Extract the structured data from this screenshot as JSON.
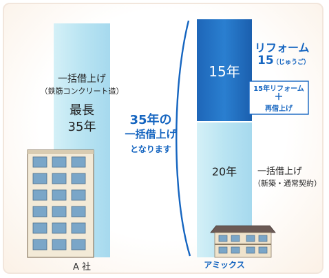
{
  "company_a": {
    "lines": [
      "一括借上げ",
      "（鉄筋コンクリート造）",
      "最長",
      "35年"
    ],
    "caption": "A 社"
  },
  "middle": {
    "lines": [
      "35年の",
      "一括借上げ",
      "となります"
    ],
    "color": "#1565c0"
  },
  "amix": {
    "top_block": "15年",
    "bottom_block": "20年",
    "caption": "アミックス",
    "reform_title": "リフォーム",
    "reform_15": "15",
    "reform_reading": "（じゅうご）",
    "box_line1": "15年リフォーム",
    "box_plus": "＋",
    "box_line2": "再借上げ",
    "bottom_text": "一括借上げ",
    "bottom_sub": "（新築・通常契約）"
  },
  "colors": {
    "light_bar": "#bfe6f3",
    "dark_block": "#1f74c7",
    "accent": "#1565c0"
  }
}
